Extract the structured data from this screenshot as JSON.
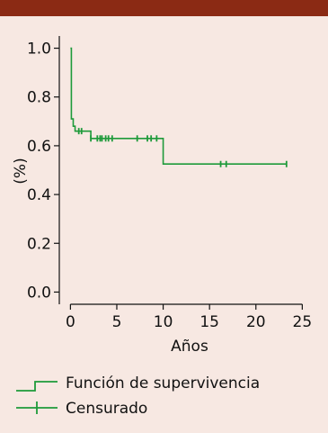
{
  "chart_data": {
    "type": "line",
    "xlabel": "Años",
    "ylabel": "(%)",
    "xlim": [
      -1.2,
      27
    ],
    "ylim": [
      -0.05,
      1.05
    ],
    "xticks": [
      0,
      5,
      10,
      15,
      20,
      25
    ],
    "yticks": [
      0.0,
      0.2,
      0.4,
      0.6,
      0.8,
      1.0
    ],
    "xtick_labels": [
      "0",
      "5",
      "10",
      "15",
      "20",
      "25"
    ],
    "ytick_labels": [
      "0.0",
      "0.2",
      "0.4",
      "0.6",
      "0.8",
      "1.0"
    ],
    "grid": false,
    "legend_position": "bottom-left",
    "line_color": "#1e9a3a",
    "series": [
      {
        "name": "Función de supervivencia",
        "kind": "step",
        "x": [
          0,
          0.1,
          0.3,
          0.5,
          0.9,
          2.2,
          10,
          23.3
        ],
        "y": [
          1.0,
          0.71,
          0.68,
          0.66,
          0.66,
          0.63,
          0.525,
          0.525
        ]
      },
      {
        "name": "Censurado",
        "kind": "censor-marks",
        "x": [
          0.9,
          1.2,
          2.2,
          2.9,
          3.2,
          3.4,
          3.8,
          4.1,
          4.5,
          7.2,
          8.3,
          8.7,
          9.3,
          16.2,
          16.8,
          23.3
        ],
        "y": [
          0.66,
          0.66,
          0.63,
          0.63,
          0.63,
          0.63,
          0.63,
          0.63,
          0.63,
          0.63,
          0.63,
          0.63,
          0.63,
          0.525,
          0.525,
          0.525
        ]
      }
    ]
  }
}
